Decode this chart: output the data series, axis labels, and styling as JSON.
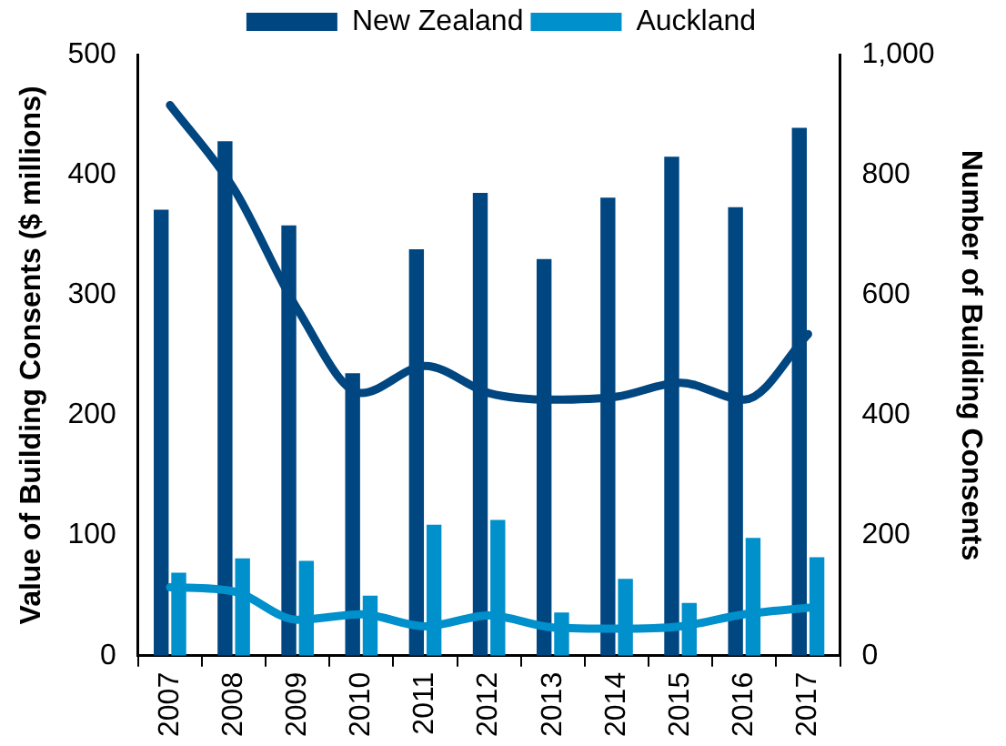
{
  "chart_data": {
    "type": "bar",
    "categories": [
      "2007",
      "2008",
      "2009",
      "2010",
      "2011",
      "2012",
      "2013",
      "2014",
      "2015",
      "2016",
      "2017"
    ],
    "ylabel": "Value of Building Consents ($ millions)",
    "y2label": "Number of Building Consents",
    "ylim": [
      0,
      500
    ],
    "yticks": [
      0,
      100,
      200,
      300,
      400,
      500
    ],
    "y2lim": [
      0,
      1000
    ],
    "y2ticks": [
      {
        "value": 0,
        "label": "0"
      },
      {
        "value": 200,
        "label": "200"
      },
      {
        "value": 400,
        "label": "400"
      },
      {
        "value": 600,
        "label": "600"
      },
      {
        "value": 800,
        "label": "800"
      },
      {
        "value": 1000,
        "label": "1,000"
      }
    ],
    "legend": "top",
    "grid": false,
    "series": [
      {
        "name": "New Zealand",
        "color": "#004680",
        "values": [
          371,
          428,
          358,
          235,
          338,
          385,
          330,
          381,
          415,
          373,
          439
        ]
      },
      {
        "name": "Auckland",
        "color": "#0090cc",
        "values": [
          69,
          81,
          79,
          50,
          109,
          113,
          36,
          64,
          44,
          98,
          82
        ]
      },
      {
        "type": "line",
        "axis": "y2",
        "color": "#004680",
        "marker": "none",
        "values": [
          916,
          777,
          576,
          437,
          482,
          437,
          426,
          431,
          454,
          426,
          535
        ]
      },
      {
        "type": "line",
        "axis": "y2",
        "color": "#0090cc",
        "marker": "none",
        "values": [
          114,
          107,
          60,
          69,
          49,
          67,
          47,
          45,
          49,
          69,
          80
        ]
      }
    ]
  }
}
